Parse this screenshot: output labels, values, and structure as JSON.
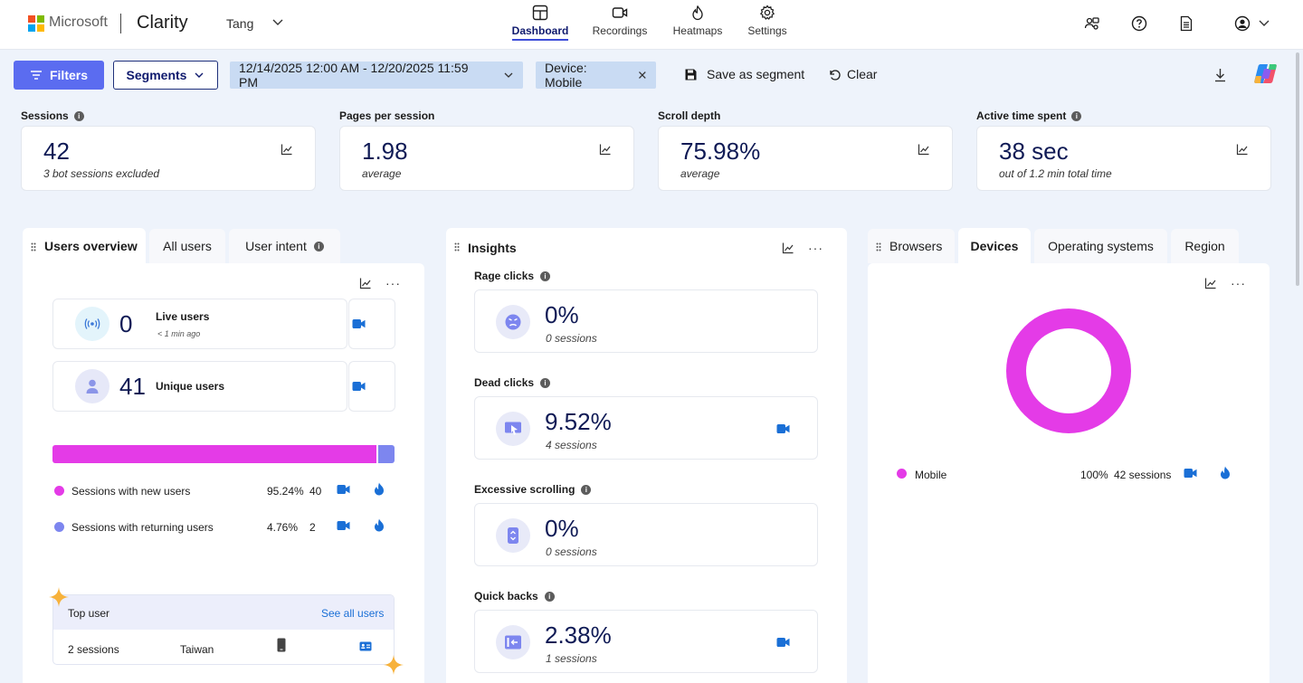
{
  "brand": {
    "company": "Microsoft",
    "product": "Clarity",
    "project": "Tang"
  },
  "nav": [
    {
      "label": "Dashboard",
      "icon": "dashboard-icon",
      "active": true
    },
    {
      "label": "Recordings",
      "icon": "video-camera-icon",
      "active": false
    },
    {
      "label": "Heatmaps",
      "icon": "flame-icon",
      "active": false
    },
    {
      "label": "Settings",
      "icon": "gear-icon",
      "active": false
    }
  ],
  "toolbar": {
    "filters_label": "Filters",
    "segments_label": "Segments",
    "date_range": "12/14/2025 12:00 AM - 12/20/2025 11:59 PM",
    "device_filter": "Device: Mobile",
    "save_segment_label": "Save as segment",
    "clear_label": "Clear"
  },
  "metrics": [
    {
      "label": "Sessions",
      "value": "42",
      "sub": "3 bot sessions excluded",
      "info": true
    },
    {
      "label": "Pages per session",
      "value": "1.98",
      "sub": "average",
      "info": false
    },
    {
      "label": "Scroll depth",
      "value": "75.98%",
      "sub": "average",
      "info": false
    },
    {
      "label": "Active time spent",
      "value": "38 sec",
      "sub": "out of 1.2 min total time",
      "info": true
    }
  ],
  "users_panel": {
    "tabs": [
      "Users overview",
      "All users",
      "User intent"
    ],
    "live": {
      "value": "0",
      "label": "Live users",
      "sub": "< 1 min ago"
    },
    "unique": {
      "value": "41",
      "label": "Unique users"
    },
    "bar": {
      "new_fraction": 0.9524,
      "new_color": "#e43be7",
      "returning_color": "#7d86ef"
    },
    "rows": [
      {
        "label": "Sessions with new users",
        "percent": "95.24%",
        "count": "40"
      },
      {
        "label": "Sessions with returning users",
        "percent": "4.76%",
        "count": "2"
      }
    ],
    "top_user": {
      "title": "Top user",
      "link": "See all users",
      "sessions": "2 sessions",
      "country": "Taiwan"
    }
  },
  "insights": {
    "title": "Insights",
    "items": [
      {
        "label": "Rage clicks",
        "value": "0%",
        "sub": "0 sessions",
        "icon": "angry-face-icon",
        "has_recording": false
      },
      {
        "label": "Dead clicks",
        "value": "9.52%",
        "sub": "4 sessions",
        "icon": "dead-click-icon",
        "has_recording": true
      },
      {
        "label": "Excessive scrolling",
        "value": "0%",
        "sub": "0 sessions",
        "icon": "scroll-icon",
        "has_recording": false
      },
      {
        "label": "Quick backs",
        "value": "2.38%",
        "sub": "1 sessions",
        "icon": "quick-back-icon",
        "has_recording": true
      }
    ]
  },
  "devices_panel": {
    "tabs": [
      "Browsers",
      "Devices",
      "Operating systems",
      "Region"
    ],
    "active_tab": "Devices",
    "chart_data": {
      "type": "pie",
      "categories": [
        "Mobile"
      ],
      "values": [
        100
      ],
      "colors": [
        "#e43be7"
      ],
      "legend": [
        {
          "name": "Mobile",
          "percent": "100%",
          "sessions": "42 sessions"
        }
      ]
    }
  }
}
